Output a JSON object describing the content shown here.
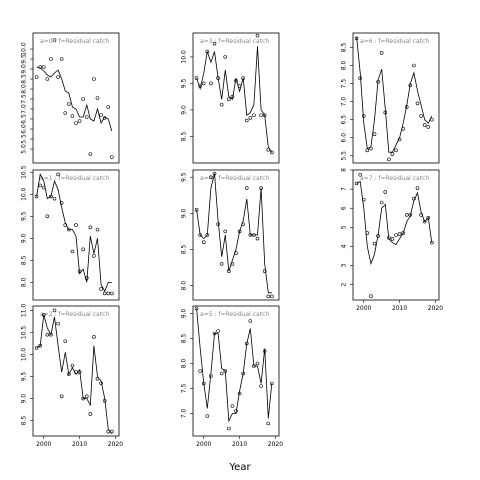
{
  "figure": {
    "xlabel": "Year"
  },
  "chart_data": [
    {
      "type": "scatter",
      "title": "a=0 : f=Residual catch",
      "xlim": [
        1997,
        2021
      ],
      "ylim": [
        4.3,
        10.8
      ],
      "x_ticks": [],
      "y_ticks": [
        5,
        5.5,
        6,
        6.5,
        7,
        7.5,
        8,
        8.5,
        9,
        9.5,
        10
      ],
      "points": {
        "x": [
          1998,
          1999,
          2000,
          2001,
          2002,
          2003,
          2004,
          2005,
          2006,
          2007,
          2008,
          2009,
          2010,
          2011,
          2012,
          2013,
          2014,
          2015,
          2016,
          2017,
          2018,
          2019
        ],
        "y": [
          8.6,
          9.1,
          9.1,
          8.5,
          9.5,
          10.45,
          8.6,
          9.5,
          6.8,
          7.25,
          6.65,
          6.3,
          6.4,
          7.5,
          6.6,
          4.75,
          8.5,
          7.55,
          6.7,
          6.55,
          7.1,
          4.6
        ]
      },
      "fit": {
        "x": [
          1998,
          1999,
          2000,
          2001,
          2002,
          2003,
          2004,
          2005,
          2006,
          2007,
          2008,
          2009,
          2010,
          2011,
          2012,
          2013,
          2014,
          2015,
          2016,
          2017,
          2018,
          2019
        ],
        "y": [
          9.1,
          9.05,
          8.9,
          8.7,
          8.6,
          8.8,
          8.95,
          8.5,
          7.9,
          7.8,
          7.1,
          7.0,
          6.6,
          6.6,
          7.2,
          6.5,
          6.4,
          7.0,
          6.3,
          6.6,
          6.5,
          5.9
        ]
      }
    },
    {
      "type": "scatter",
      "title": "a=3 : f=Residual catch",
      "xlim": [
        1997,
        2021
      ],
      "ylim": [
        8.0,
        10.45
      ],
      "x_ticks": [],
      "y_ticks": [
        8.5,
        9.0,
        9.5,
        10.0
      ],
      "points": {
        "x": [
          1998,
          1999,
          2000,
          2001,
          2002,
          2003,
          2004,
          2005,
          2006,
          2007,
          2008,
          2009,
          2010,
          2011,
          2012,
          2013,
          2014,
          2015,
          2016,
          2017,
          2018,
          2019
        ],
        "y": [
          9.6,
          9.45,
          9.5,
          10.1,
          9.5,
          10.25,
          9.6,
          9.1,
          10.0,
          9.2,
          9.25,
          9.55,
          9.45,
          9.6,
          8.8,
          8.85,
          8.9,
          10.4,
          8.9,
          8.9,
          8.25,
          8.2
        ]
      },
      "fit": {
        "x": [
          1998,
          1999,
          2000,
          2001,
          2002,
          2003,
          2004,
          2005,
          2006,
          2007,
          2008,
          2009,
          2010,
          2011,
          2012,
          2013,
          2014,
          2015,
          2016,
          2017,
          2018,
          2019
        ],
        "y": [
          9.6,
          9.4,
          9.7,
          10.1,
          9.9,
          10.1,
          9.6,
          9.2,
          9.75,
          9.25,
          9.2,
          9.6,
          9.35,
          9.6,
          8.9,
          8.95,
          9.1,
          10.2,
          9.0,
          8.9,
          8.3,
          8.2
        ]
      }
    },
    {
      "type": "scatter",
      "title": "a=6 : f=Residual catch",
      "xlim": [
        1997,
        2021
      ],
      "ylim": [
        5.3,
        8.9
      ],
      "x_ticks": [],
      "y_ticks": [
        5.5,
        6.0,
        6.5,
        7.0,
        7.5,
        8.0,
        8.5
      ],
      "points": {
        "x": [
          1998,
          1999,
          2000,
          2001,
          2002,
          2003,
          2004,
          2005,
          2006,
          2007,
          2008,
          2009,
          2010,
          2011,
          2012,
          2013,
          2014,
          2015,
          2016,
          2017,
          2018,
          2019
        ],
        "y": [
          8.75,
          7.65,
          6.6,
          5.65,
          5.7,
          6.1,
          7.55,
          8.35,
          6.7,
          5.4,
          5.55,
          5.65,
          5.95,
          6.25,
          6.85,
          7.45,
          8.0,
          6.95,
          6.6,
          6.35,
          6.3,
          6.5
        ]
      },
      "fit": {
        "x": [
          1998,
          1999,
          2000,
          2001,
          2002,
          2003,
          2004,
          2005,
          2006,
          2007,
          2008,
          2009,
          2010,
          2011,
          2012,
          2013,
          2014,
          2015,
          2016,
          2017,
          2018,
          2019
        ],
        "y": [
          8.8,
          7.8,
          6.4,
          5.7,
          5.75,
          6.5,
          7.6,
          7.9,
          6.8,
          5.6,
          5.6,
          5.8,
          6.0,
          6.4,
          6.9,
          7.5,
          7.8,
          7.3,
          6.9,
          6.5,
          6.4,
          6.6
        ]
      }
    },
    {
      "type": "scatter",
      "title": "a=1 : f=Residual catch",
      "xlim": [
        1997,
        2021
      ],
      "ylim": [
        7.6,
        10.55
      ],
      "x_ticks": [],
      "y_ticks": [
        8.0,
        8.5,
        9.0,
        9.5,
        10.0,
        10.5
      ],
      "points": {
        "x": [
          1998,
          1999,
          2000,
          2001,
          2002,
          2003,
          2004,
          2005,
          2006,
          2007,
          2008,
          2009,
          2010,
          2011,
          2012,
          2013,
          2014,
          2015,
          2016,
          2017,
          2018,
          2019
        ],
        "y": [
          9.95,
          10.2,
          10.15,
          9.5,
          9.95,
          9.9,
          10.45,
          9.8,
          9.3,
          9.2,
          8.7,
          9.3,
          8.25,
          8.75,
          8.1,
          9.25,
          8.6,
          9.2,
          7.85,
          7.75,
          7.75,
          7.75
        ]
      },
      "fit": {
        "x": [
          1998,
          1999,
          2000,
          2001,
          2002,
          2003,
          2004,
          2005,
          2006,
          2007,
          2008,
          2009,
          2010,
          2011,
          2012,
          2013,
          2014,
          2015,
          2016,
          2017,
          2018,
          2019
        ],
        "y": [
          9.95,
          10.45,
          10.3,
          9.9,
          9.95,
          10.3,
          10.1,
          9.7,
          9.35,
          9.2,
          9.2,
          9.05,
          8.2,
          8.3,
          8.0,
          9.05,
          8.65,
          9.0,
          7.95,
          7.8,
          8.0,
          8.0
        ]
      }
    },
    {
      "type": "scatter",
      "title": "a=4 : f=Residual catch",
      "xlim": [
        1997,
        2021
      ],
      "ylim": [
        7.8,
        9.6
      ],
      "x_ticks": [],
      "y_ticks": [
        8.0,
        8.5,
        9.0,
        9.5
      ],
      "points": {
        "x": [
          1998,
          1999,
          2000,
          2001,
          2002,
          2003,
          2004,
          2005,
          2006,
          2007,
          2008,
          2009,
          2010,
          2011,
          2012,
          2013,
          2014,
          2015,
          2016,
          2017,
          2018,
          2019
        ],
        "y": [
          9.05,
          8.7,
          8.6,
          8.7,
          9.5,
          9.55,
          8.85,
          8.3,
          8.75,
          8.2,
          8.3,
          8.45,
          8.75,
          8.85,
          9.35,
          8.7,
          8.7,
          8.65,
          9.35,
          8.2,
          7.85,
          7.85
        ]
      },
      "fit": {
        "x": [
          1998,
          1999,
          2000,
          2001,
          2002,
          2003,
          2004,
          2005,
          2006,
          2007,
          2008,
          2009,
          2010,
          2011,
          2012,
          2013,
          2014,
          2015,
          2016,
          2017,
          2018,
          2019
        ],
        "y": [
          9.05,
          8.7,
          8.65,
          8.7,
          9.35,
          9.55,
          8.9,
          8.4,
          8.7,
          8.2,
          8.35,
          8.5,
          8.75,
          8.9,
          9.2,
          8.7,
          8.7,
          8.7,
          9.35,
          8.3,
          7.9,
          7.9
        ]
      }
    },
    {
      "type": "scatter",
      "title": "a=7 : f=Residual catch",
      "xlim": [
        1997,
        2021
      ],
      "ylim": [
        1.2,
        8.0
      ],
      "x_ticks": [
        2000,
        2010,
        2020
      ],
      "y_ticks": [
        2,
        3,
        4,
        5,
        6,
        7,
        8
      ],
      "points": {
        "x": [
          1998,
          1999,
          2000,
          2001,
          2002,
          2003,
          2004,
          2005,
          2006,
          2007,
          2008,
          2009,
          2010,
          2011,
          2012,
          2013,
          2014,
          2015,
          2016,
          2017,
          2018,
          2019
        ],
        "y": [
          7.3,
          7.75,
          6.45,
          4.7,
          1.4,
          4.15,
          4.55,
          6.3,
          6.85,
          4.45,
          4.4,
          4.6,
          4.65,
          4.7,
          5.65,
          5.65,
          6.5,
          7.05,
          5.65,
          5.3,
          5.5,
          4.2
        ]
      },
      "fit": {
        "x": [
          1998,
          1999,
          2000,
          2001,
          2002,
          2003,
          2004,
          2005,
          2006,
          2007,
          2008,
          2009,
          2010,
          2011,
          2012,
          2013,
          2014,
          2015,
          2016,
          2017,
          2018,
          2019
        ],
        "y": [
          7.3,
          7.4,
          6.0,
          4.0,
          3.1,
          3.6,
          4.6,
          6.0,
          6.2,
          4.4,
          4.2,
          4.1,
          4.4,
          4.7,
          5.3,
          5.6,
          6.4,
          6.8,
          5.8,
          5.3,
          5.5,
          4.2
        ]
      }
    },
    {
      "type": "scatter",
      "title": "a=2 : f=Residual catch",
      "xlim": [
        1997,
        2021
      ],
      "ylim": [
        8.15,
        11.1
      ],
      "x_ticks": [
        2000,
        2010,
        2020
      ],
      "y_ticks": [
        8.5,
        9.0,
        9.5,
        10.0,
        10.5,
        11.0
      ],
      "points": {
        "x": [
          1998,
          1999,
          2000,
          2001,
          2002,
          2003,
          2004,
          2005,
          2006,
          2007,
          2008,
          2009,
          2010,
          2011,
          2012,
          2013,
          2014,
          2015,
          2016,
          2017,
          2018,
          2019
        ],
        "y": [
          10.15,
          10.2,
          10.9,
          10.45,
          10.45,
          11.0,
          10.7,
          9.05,
          10.3,
          9.55,
          9.75,
          9.6,
          9.6,
          9.0,
          9.05,
          8.65,
          10.4,
          9.45,
          9.35,
          8.95,
          8.25,
          8.25
        ]
      },
      "fit": {
        "x": [
          1998,
          1999,
          2000,
          2001,
          2002,
          2003,
          2004,
          2005,
          2006,
          2007,
          2008,
          2009,
          2010,
          2011,
          2012,
          2013,
          2014,
          2015,
          2016,
          2017,
          2018,
          2019
        ],
        "y": [
          10.15,
          10.2,
          10.9,
          10.6,
          10.45,
          10.85,
          10.2,
          9.6,
          10.05,
          9.55,
          9.7,
          9.55,
          9.65,
          9.0,
          9.0,
          8.85,
          10.2,
          9.5,
          9.4,
          9.0,
          8.3,
          8.2
        ]
      }
    },
    {
      "type": "scatter",
      "title": "a=5 : f=Residual catch",
      "xlim": [
        1997,
        2021
      ],
      "ylim": [
        6.55,
        9.15
      ],
      "x_ticks": [
        2000,
        2010,
        2020
      ],
      "y_ticks": [
        7.0,
        7.5,
        8.0,
        8.5,
        9.0
      ],
      "points": {
        "x": [
          1998,
          1999,
          2000,
          2001,
          2002,
          2003,
          2004,
          2005,
          2006,
          2007,
          2008,
          2009,
          2010,
          2011,
          2012,
          2013,
          2014,
          2015,
          2016,
          2017,
          2018,
          2019
        ],
        "y": [
          9.1,
          7.85,
          7.6,
          6.95,
          7.75,
          8.6,
          8.65,
          7.8,
          7.85,
          6.7,
          7.15,
          7.05,
          7.4,
          7.8,
          8.4,
          8.85,
          7.95,
          8.0,
          7.55,
          8.25,
          6.8,
          7.6
        ]
      },
      "fit": {
        "x": [
          1998,
          1999,
          2000,
          2001,
          2002,
          2003,
          2004,
          2005,
          2006,
          2007,
          2008,
          2009,
          2010,
          2011,
          2012,
          2013,
          2014,
          2015,
          2016,
          2017,
          2018,
          2019
        ],
        "y": [
          9.1,
          8.3,
          7.6,
          7.1,
          7.8,
          8.6,
          8.6,
          7.9,
          7.85,
          6.85,
          7.0,
          7.0,
          7.45,
          7.8,
          8.4,
          8.7,
          7.95,
          7.95,
          7.6,
          8.3,
          6.9,
          7.6
        ]
      }
    }
  ]
}
